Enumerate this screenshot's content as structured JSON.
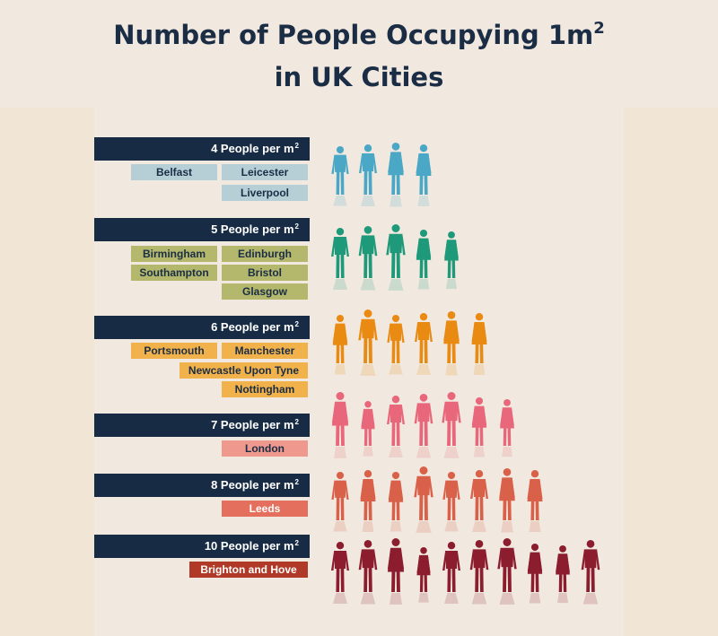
{
  "title": {
    "line1": "Number of People Occupying 1m",
    "sup": "2",
    "line2": "in UK Cities"
  },
  "chart_data": {
    "type": "table",
    "groups": [
      {
        "label": "4 People per m",
        "sup": "2",
        "value": 4,
        "color": "#4aa8c6",
        "tag_color": "#b6cfd7",
        "text_color": "#1b2d45",
        "cities": [
          "Belfast",
          "Leicester",
          "Liverpool"
        ]
      },
      {
        "label": "5 People per m",
        "sup": "2",
        "value": 5,
        "color": "#1e9a7a",
        "tag_color": "#b4b86c",
        "text_color": "#1b2d45",
        "cities": [
          "Birmingham",
          "Edinburgh",
          "Southampton",
          "Bristol",
          "Glasgow"
        ]
      },
      {
        "label": "6 People per m",
        "sup": "2",
        "value": 6,
        "color": "#e98b12",
        "tag_color": "#f1b24b",
        "text_color": "#1b2d45",
        "cities": [
          "Portsmouth",
          "Manchester",
          "Newcastle Upon Tyne",
          "Nottingham"
        ]
      },
      {
        "label": "7 People per m",
        "sup": "2",
        "value": 7,
        "color": "#e9677a",
        "tag_color": "#ee988e",
        "text_color": "#1b2d45",
        "cities": [
          "London"
        ]
      },
      {
        "label": "8 People per m",
        "sup": "2",
        "value": 8,
        "color": "#d9614a",
        "tag_color": "#e46f5c",
        "text_color": "#ffffff",
        "cities": [
          "Leeds"
        ]
      },
      {
        "label": "10 People per m",
        "sup": "2",
        "value": 10,
        "color": "#8b1d2e",
        "tag_color": "#b03a27",
        "text_color": "#ffffff",
        "cities": [
          "Brighton and Hove"
        ]
      }
    ]
  }
}
